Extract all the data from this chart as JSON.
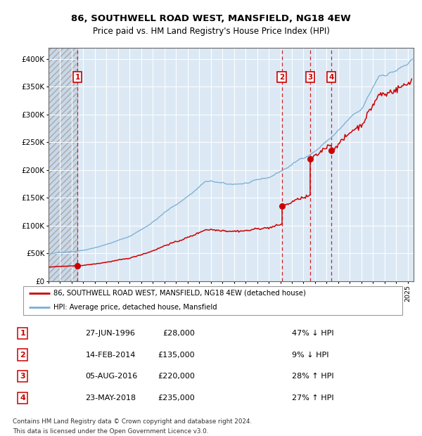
{
  "title1": "86, SOUTHWELL ROAD WEST, MANSFIELD, NG18 4EW",
  "title2": "Price paid vs. HM Land Registry's House Price Index (HPI)",
  "bg_color": "#dce9f5",
  "red_line_color": "#cc0000",
  "blue_line_color": "#7bafd4",
  "grid_color": "#ffffff",
  "sale_points": [
    {
      "label": "1",
      "date_x": 1996.49,
      "price": 28000,
      "date_str": "27-JUN-1996",
      "price_str": "£28,000",
      "hpi_pct": "47% ↓ HPI"
    },
    {
      "label": "2",
      "date_x": 2014.12,
      "price": 135000,
      "date_str": "14-FEB-2014",
      "price_str": "£135,000",
      "hpi_pct": "9% ↓ HPI"
    },
    {
      "label": "3",
      "date_x": 2016.59,
      "price": 220000,
      "date_str": "05-AUG-2016",
      "price_str": "£220,000",
      "hpi_pct": "28% ↑ HPI"
    },
    {
      "label": "4",
      "date_x": 2018.39,
      "price": 235000,
      "date_str": "23-MAY-2018",
      "price_str": "£235,000",
      "hpi_pct": "27% ↑ HPI"
    }
  ],
  "legend_line1": "86, SOUTHWELL ROAD WEST, MANSFIELD, NG18 4EW (detached house)",
  "legend_line2": "HPI: Average price, detached house, Mansfield",
  "footer1": "Contains HM Land Registry data © Crown copyright and database right 2024.",
  "footer2": "This data is licensed under the Open Government Licence v3.0.",
  "ylim": [
    0,
    420000
  ],
  "xlim_start": 1994.0,
  "xlim_end": 2025.5,
  "yticks": [
    0,
    50000,
    100000,
    150000,
    200000,
    250000,
    300000,
    350000,
    400000
  ],
  "ylabels": [
    "£0",
    "£50K",
    "£100K",
    "£150K",
    "£200K",
    "£250K",
    "£300K",
    "£350K",
    "£400K"
  ]
}
